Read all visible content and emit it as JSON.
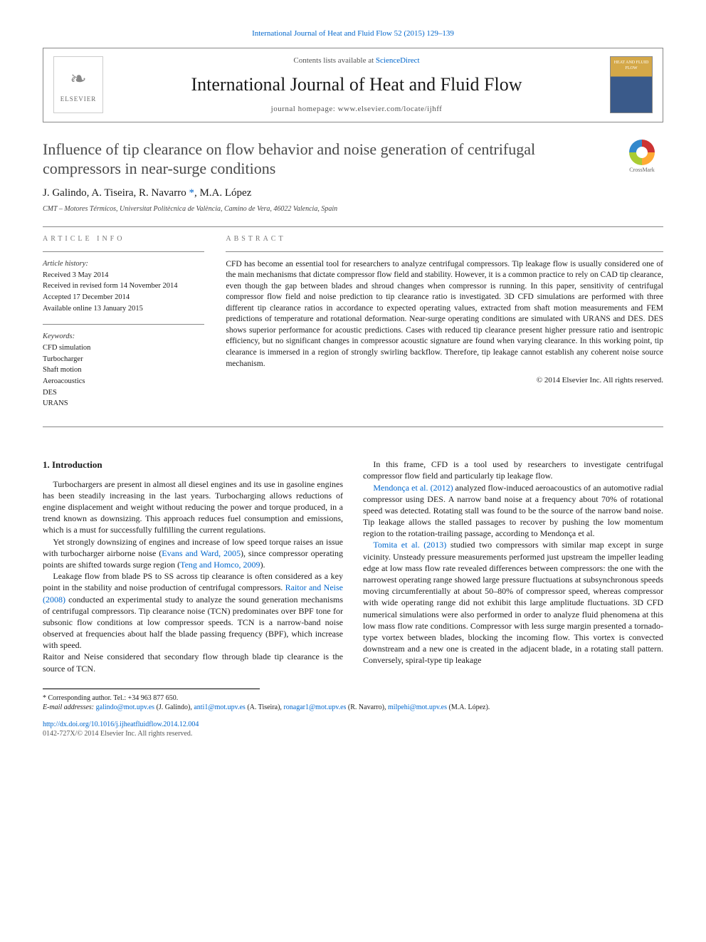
{
  "citation_line": "International Journal of Heat and Fluid Flow 52 (2015) 129–139",
  "header": {
    "contents_prefix": "Contents lists available at ",
    "contents_link": "ScienceDirect",
    "journal_name": "International Journal of Heat and Fluid Flow",
    "homepage_prefix": "journal homepage: ",
    "homepage_url": "www.elsevier.com/locate/ijhff",
    "publisher_label": "ELSEVIER",
    "cover_text": "HEAT AND FLUID FLOW"
  },
  "crossmark_label": "CrossMark",
  "title": "Influence of tip clearance on flow behavior and noise generation of centrifugal compressors in near-surge conditions",
  "authors_html": "J. Galindo, A. Tiseira, R. Navarro *, M.A. López",
  "authors": {
    "a1": "J. Galindo",
    "a2": "A. Tiseira",
    "a3": "R. Navarro",
    "corr_mark": "*",
    "a4": "M.A. López"
  },
  "affiliation": "CMT – Motores Térmicos, Universitat Politècnica de València, Camino de Vera, 46022 Valencia, Spain",
  "article_info_head": "ARTICLE INFO",
  "abstract_head": "ABSTRACT",
  "history": {
    "label": "Article history:",
    "received": "Received 3 May 2014",
    "revised": "Received in revised form 14 November 2014",
    "accepted": "Accepted 17 December 2014",
    "online": "Available online 13 January 2015"
  },
  "keywords": {
    "label": "Keywords:",
    "k1": "CFD simulation",
    "k2": "Turbocharger",
    "k3": "Shaft motion",
    "k4": "Aeroacoustics",
    "k5": "DES",
    "k6": "URANS"
  },
  "abstract_text": "CFD has become an essential tool for researchers to analyze centrifugal compressors. Tip leakage flow is usually considered one of the main mechanisms that dictate compressor flow field and stability. However, it is a common practice to rely on CAD tip clearance, even though the gap between blades and shroud changes when compressor is running. In this paper, sensitivity of centrifugal compressor flow field and noise prediction to tip clearance ratio is investigated. 3D CFD simulations are performed with three different tip clearance ratios in accordance to expected operating values, extracted from shaft motion measurements and FEM predictions of temperature and rotational deformation. Near-surge operating conditions are simulated with URANS and DES. DES shows superior performance for acoustic predictions. Cases with reduced tip clearance present higher pressure ratio and isentropic efficiency, but no significant changes in compressor acoustic signature are found when varying clearance. In this working point, tip clearance is immersed in a region of strongly swirling backflow. Therefore, tip leakage cannot establish any coherent noise source mechanism.",
  "copyright": "© 2014 Elsevier Inc. All rights reserved.",
  "section1_title": "1. Introduction",
  "body": {
    "p1": "Turbochargers are present in almost all diesel engines and its use in gasoline engines has been steadily increasing in the last years. Turbocharging allows reductions of engine displacement and weight without reducing the power and torque produced, in a trend known as downsizing. This approach reduces fuel consumption and emissions, which is a must for successfully fulfilling the current regulations.",
    "p2a": "Yet strongly downsizing of engines and increase of low speed torque raises an issue with turbocharger airborne noise (",
    "p2_cite1": "Evans and Ward, 2005",
    "p2b": "), since compressor operating points are shifted towards surge region (",
    "p2_cite2": "Teng and Homco, 2009",
    "p2c": ").",
    "p3a": "Leakage flow from blade PS to SS across tip clearance is often considered as a key point in the stability and noise production of centrifugal compressors. ",
    "p3_cite1": "Raitor and Neise (2008)",
    "p3b": " conducted an experimental study to analyze the sound generation mechanisms of centrifugal compressors. Tip clearance noise (TCN) predominates over BPF tone for subsonic flow conditions at low compressor speeds. TCN is a narrow-band noise observed at frequencies about half the blade passing frequency (BPF), which increase with speed.",
    "p4": "Raitor and Neise considered that secondary flow through blade tip clearance is the source of TCN.",
    "p5": "In this frame, CFD is a tool used by researchers to investigate centrifugal compressor flow field and particularly tip leakage flow.",
    "p6_cite": "Mendonça et al. (2012)",
    "p6": " analyzed flow-induced aeroacoustics of an automotive radial compressor using DES. A narrow band noise at a frequency about 70% of rotational speed was detected. Rotating stall was found to be the source of the narrow band noise. Tip leakage allows the stalled passages to recover by pushing the low momentum region to the rotation-trailing passage, according to Mendonça et al.",
    "p7_cite": "Tomita et al. (2013)",
    "p7": " studied two compressors with similar map except in surge vicinity. Unsteady pressure measurements performed just upstream the impeller leading edge at low mass flow rate revealed differences between compressors: the one with the narrowest operating range showed large pressure fluctuations at subsynchronous speeds moving circumferentially at about 50–80% of compressor speed, whereas compressor with wide operating range did not exhibit this large amplitude fluctuations. 3D CFD numerical simulations were also performed in order to analyze fluid phenomena at this low mass flow rate conditions. Compressor with less surge margin presented a tornado-type vortex between blades, blocking the incoming flow. This vortex is convected downstream and a new one is created in the adjacent blade, in a rotating stall pattern. Conversely, spiral-type tip leakage"
  },
  "footnote": {
    "corr": "* Corresponding author. Tel.: +34 963 877 650.",
    "email_label": "E-mail addresses:",
    "e1": "galindo@mot.upv.es",
    "n1": " (J. Galindo), ",
    "e2": "anti1@mot.upv.es",
    "n2": " (A. Tiseira), ",
    "e3": "ronagar1@mot.upv.es",
    "n3": " (R. Navarro), ",
    "e4": "milpehi@mot.upv.es",
    "n4": " (M.A. López)."
  },
  "doi": {
    "url": "http://dx.doi.org/10.1016/j.ijheatfluidflow.2014.12.004",
    "issn_line": "0142-727X/© 2014 Elsevier Inc. All rights reserved."
  }
}
